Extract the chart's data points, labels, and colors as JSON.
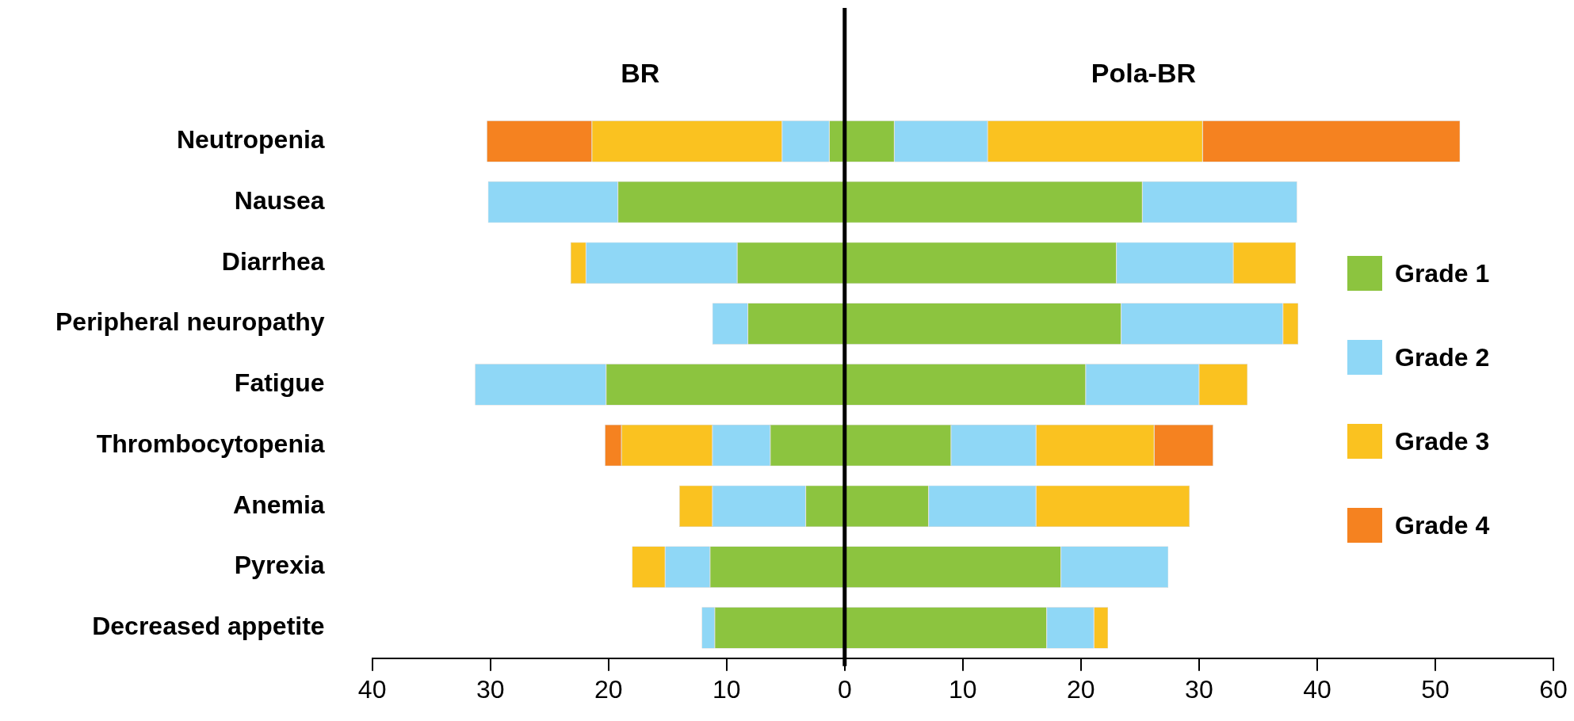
{
  "chart_data": {
    "type": "bar",
    "orientation": "horizontal",
    "stacked": true,
    "categories": [
      "Neutropenia",
      "Nausea",
      "Diarrhea",
      "Peripheral neuropathy",
      "Fatigue",
      "Thrombocytopenia",
      "Anemia",
      "Pyrexia",
      "Decreased appetite"
    ],
    "series": [
      {
        "color": "#8cc43f",
        "values": [
          -1.3,
          -19.2,
          -9.1,
          -8.2,
          -20.2,
          -6.3,
          -3.3,
          -11.4,
          -11.0
        ]
      },
      {
        "color": "#8fd7f6",
        "values": [
          -4.0,
          -11.0,
          -12.8,
          -3.0,
          -11.1,
          -4.9,
          -7.9,
          -3.8,
          -1.1
        ]
      },
      {
        "color": "#fac220",
        "values": [
          -16.1,
          null,
          -1.3,
          null,
          null,
          -7.7,
          -2.8,
          -2.8,
          null
        ]
      },
      {
        "color": "#f58220",
        "values": [
          -8.9,
          null,
          null,
          null,
          null,
          -1.4,
          null,
          null,
          null
        ]
      },
      {
        "name": "Grade 1",
        "color": "#8cc43f",
        "values": [
          4.2,
          25.2,
          23.0,
          23.4,
          20.4,
          9.0,
          7.1,
          18.3,
          17.1
        ]
      },
      {
        "name": "Grade 2",
        "color": "#8fd7f6",
        "values": [
          7.9,
          13.1,
          9.9,
          13.7,
          9.6,
          7.2,
          9.1,
          9.1,
          4.0
        ]
      },
      {
        "name": "Grade 3",
        "color": "#fac220",
        "values": [
          18.2,
          null,
          5.3,
          1.3,
          4.1,
          10.0,
          13.0,
          null,
          1.2
        ]
      },
      {
        "name": "Grade 4",
        "color": "#f58220",
        "values": [
          21.8,
          null,
          null,
          null,
          null,
          5.0,
          null,
          null,
          null
        ]
      }
    ],
    "xlim": [
      -40,
      60
    ],
    "xticks": [
      {
        "value": -40,
        "label": "40"
      },
      {
        "value": -30,
        "label": "30"
      },
      {
        "value": -20,
        "label": "20"
      },
      {
        "value": -10,
        "label": "10"
      },
      0,
      10,
      20,
      30,
      40,
      50,
      60
    ],
    "annotations": [
      "BR",
      "Pola-BR"
    ],
    "ref_lines": [
      {
        "axis": "x",
        "value": 0,
        "color": "#000000"
      }
    ],
    "grid": false,
    "legend": "right"
  }
}
